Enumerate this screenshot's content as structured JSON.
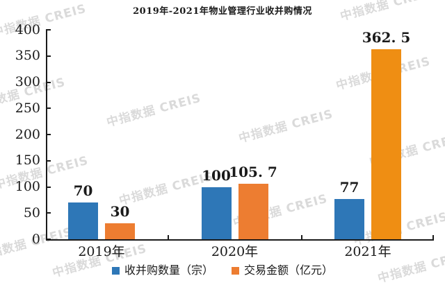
{
  "title": "2019年-2021年物业管理行业收并购情况",
  "watermark": {
    "text": "中指数据 CREIS",
    "color": "#dadada",
    "positions": [
      [
        -15,
        34
      ],
      [
        486,
        10
      ],
      [
        -45,
        140
      ],
      [
        150,
        163
      ],
      [
        340,
        186
      ],
      [
        480,
        110
      ],
      [
        -12,
        253
      ],
      [
        168,
        276
      ],
      [
        528,
        220
      ],
      [
        332,
        308
      ],
      [
        -35,
        356
      ],
      [
        505,
        334
      ],
      [
        72,
        380
      ],
      [
        540,
        388
      ]
    ]
  },
  "chart_data": {
    "type": "bar",
    "title": "2019年-2021年物业管理行业收并购情况",
    "categories": [
      "2019年",
      "2020年",
      "2021年"
    ],
    "series": [
      {
        "name": "收并购数量（宗）",
        "color": "#2E77B7",
        "values": [
          70,
          100,
          77
        ],
        "labels": [
          "70",
          "100",
          "77"
        ]
      },
      {
        "name": "交易金额（亿元）",
        "color": "#ED7D31",
        "point_colors": [
          "#ED7D31",
          "#ED7D31",
          "#EF8E13"
        ],
        "values": [
          30,
          105.7,
          362.5
        ],
        "labels": [
          "30",
          "105. 7",
          "362. 5"
        ]
      }
    ],
    "xlabel": "",
    "ylabel": "",
    "ylim": [
      0,
      400
    ],
    "ytick_step": 50,
    "yticks": [
      0,
      50,
      100,
      150,
      200,
      250,
      300,
      350,
      400
    ],
    "grid": false,
    "legend_position": "bottom"
  }
}
